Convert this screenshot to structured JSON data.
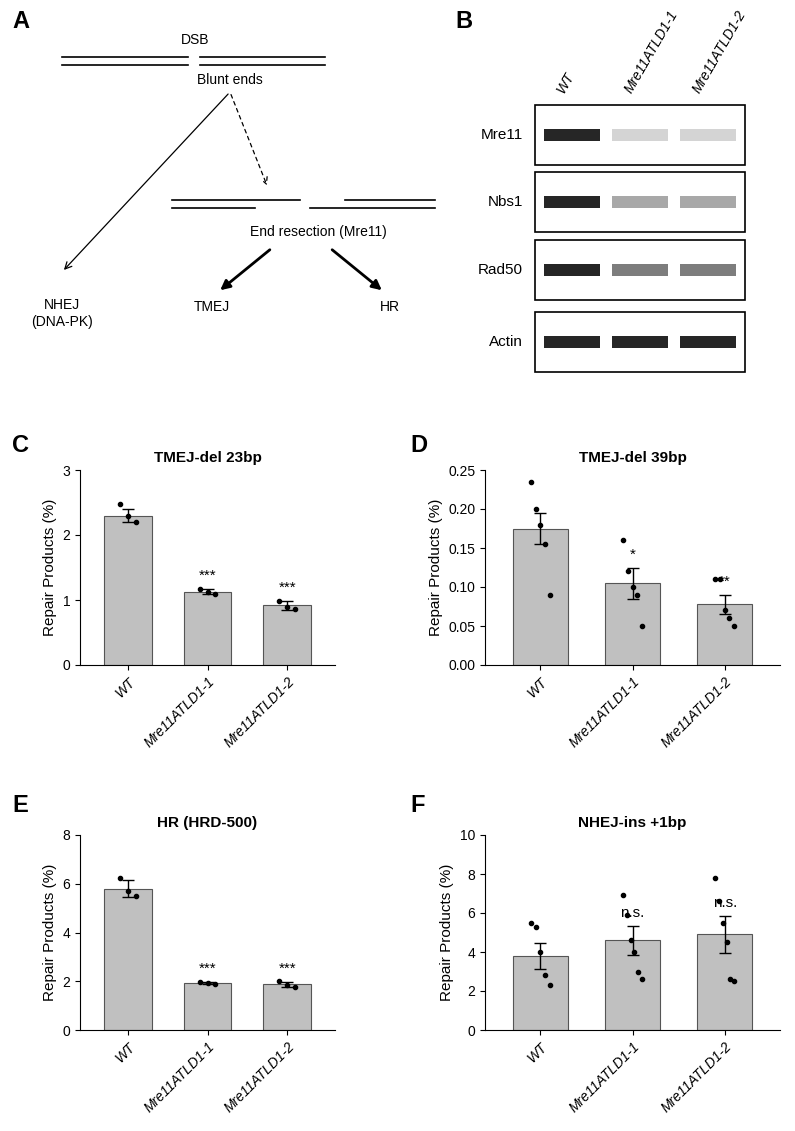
{
  "panel_letters": [
    "A",
    "B",
    "C",
    "D",
    "E",
    "F"
  ],
  "diagram": {
    "top": "DSB",
    "ends": "Blunt ends",
    "resection": "End resection (Mre11)",
    "nhej": "NHEJ\n(DNA-PK)",
    "tmej": "TMEJ",
    "hr": "HR"
  },
  "blot": {
    "lanes": [
      "WT",
      "Mre11ATLD1-1",
      "Mre11ATLD1-2"
    ],
    "rows": [
      {
        "label": "Mre11",
        "band_intensity": [
          1.0,
          0.2,
          0.2
        ]
      },
      {
        "label": "Nbs1",
        "band_intensity": [
          1.0,
          0.4,
          0.4
        ]
      },
      {
        "label": "Rad50",
        "band_intensity": [
          1.0,
          0.6,
          0.6
        ]
      },
      {
        "label": "Actin",
        "band_intensity": [
          1.0,
          1.0,
          1.0
        ]
      }
    ]
  },
  "chart_data": [
    {
      "type": "bar",
      "title": "TMEJ-del 23bp",
      "y_label": "Repair Products (%)",
      "categories": [
        "WT",
        "Mre11ATLD1-1",
        "Mre11ATLD1-2"
      ],
      "values": [
        2.3,
        1.13,
        0.92
      ],
      "errors": [
        0.1,
        0.04,
        0.07
      ],
      "points": [
        [
          2.47,
          2.3,
          2.2
        ],
        [
          1.17,
          1.12,
          1.1
        ],
        [
          0.98,
          0.9,
          0.86
        ]
      ],
      "significance": [
        null,
        "***",
        "***"
      ],
      "color": "#c0c0c0",
      "ylim": [
        0,
        3
      ],
      "yticks": [
        0,
        1,
        2,
        3
      ],
      "grid": false
    },
    {
      "type": "bar",
      "title": "TMEJ-del 39bp",
      "y_label": "Repair Products (%)",
      "categories": [
        "WT",
        "Mre11ATLD1-1",
        "Mre11ATLD1-2"
      ],
      "values": [
        0.175,
        0.105,
        0.078
      ],
      "errors": [
        0.02,
        0.02,
        0.012
      ],
      "points": [
        [
          0.235,
          0.2,
          0.18,
          0.155,
          0.09
        ],
        [
          0.16,
          0.12,
          0.1,
          0.09,
          0.05
        ],
        [
          0.11,
          0.11,
          0.07,
          0.06,
          0.05
        ]
      ],
      "significance": [
        null,
        "*",
        "**"
      ],
      "color": "#c0c0c0",
      "ylim": [
        0,
        0.25
      ],
      "yticks": [
        {
          "value": 0,
          "label": "0.00"
        },
        0.05,
        {
          "value": 0.1,
          "label": "0.10"
        },
        0.15,
        {
          "value": 0.2,
          "label": "0.20"
        },
        0.25
      ],
      "grid": false
    },
    {
      "type": "bar",
      "title": "HR (HRD-500)",
      "y_label": "Repair Products (%)",
      "categories": [
        "WT",
        "Mre11ATLD1-1",
        "Mre11ATLD1-2"
      ],
      "values": [
        5.8,
        1.93,
        1.88
      ],
      "errors": [
        0.35,
        0.05,
        0.1
      ],
      "points": [
        [
          6.25,
          5.7,
          5.5
        ],
        [
          1.98,
          1.92,
          1.9
        ],
        [
          2.0,
          1.85,
          1.75
        ]
      ],
      "significance": [
        null,
        "***",
        "***"
      ],
      "color": "#c0c0c0",
      "ylim": [
        0,
        8
      ],
      "yticks": [
        0,
        2,
        4,
        6,
        8
      ],
      "grid": false
    },
    {
      "type": "bar",
      "title": "NHEJ-ins +1bp",
      "y_label": "Repair Products (%)",
      "categories": [
        "WT",
        "Mre11ATLD1-1",
        "Mre11ATLD1-2"
      ],
      "values": [
        3.8,
        4.6,
        4.9
      ],
      "errors": [
        0.65,
        0.75,
        0.95
      ],
      "points": [
        [
          5.5,
          5.3,
          4.0,
          2.8,
          2.3
        ],
        [
          6.9,
          5.9,
          4.6,
          4.0,
          3.0,
          2.6
        ],
        [
          7.8,
          6.6,
          5.5,
          4.5,
          2.6,
          2.5
        ]
      ],
      "significance": [
        null,
        "n.s.",
        "n.s."
      ],
      "color": "#c0c0c0",
      "ylim": [
        0,
        10
      ],
      "yticks": [
        0,
        2,
        4,
        6,
        8,
        10
      ],
      "grid": false
    }
  ]
}
